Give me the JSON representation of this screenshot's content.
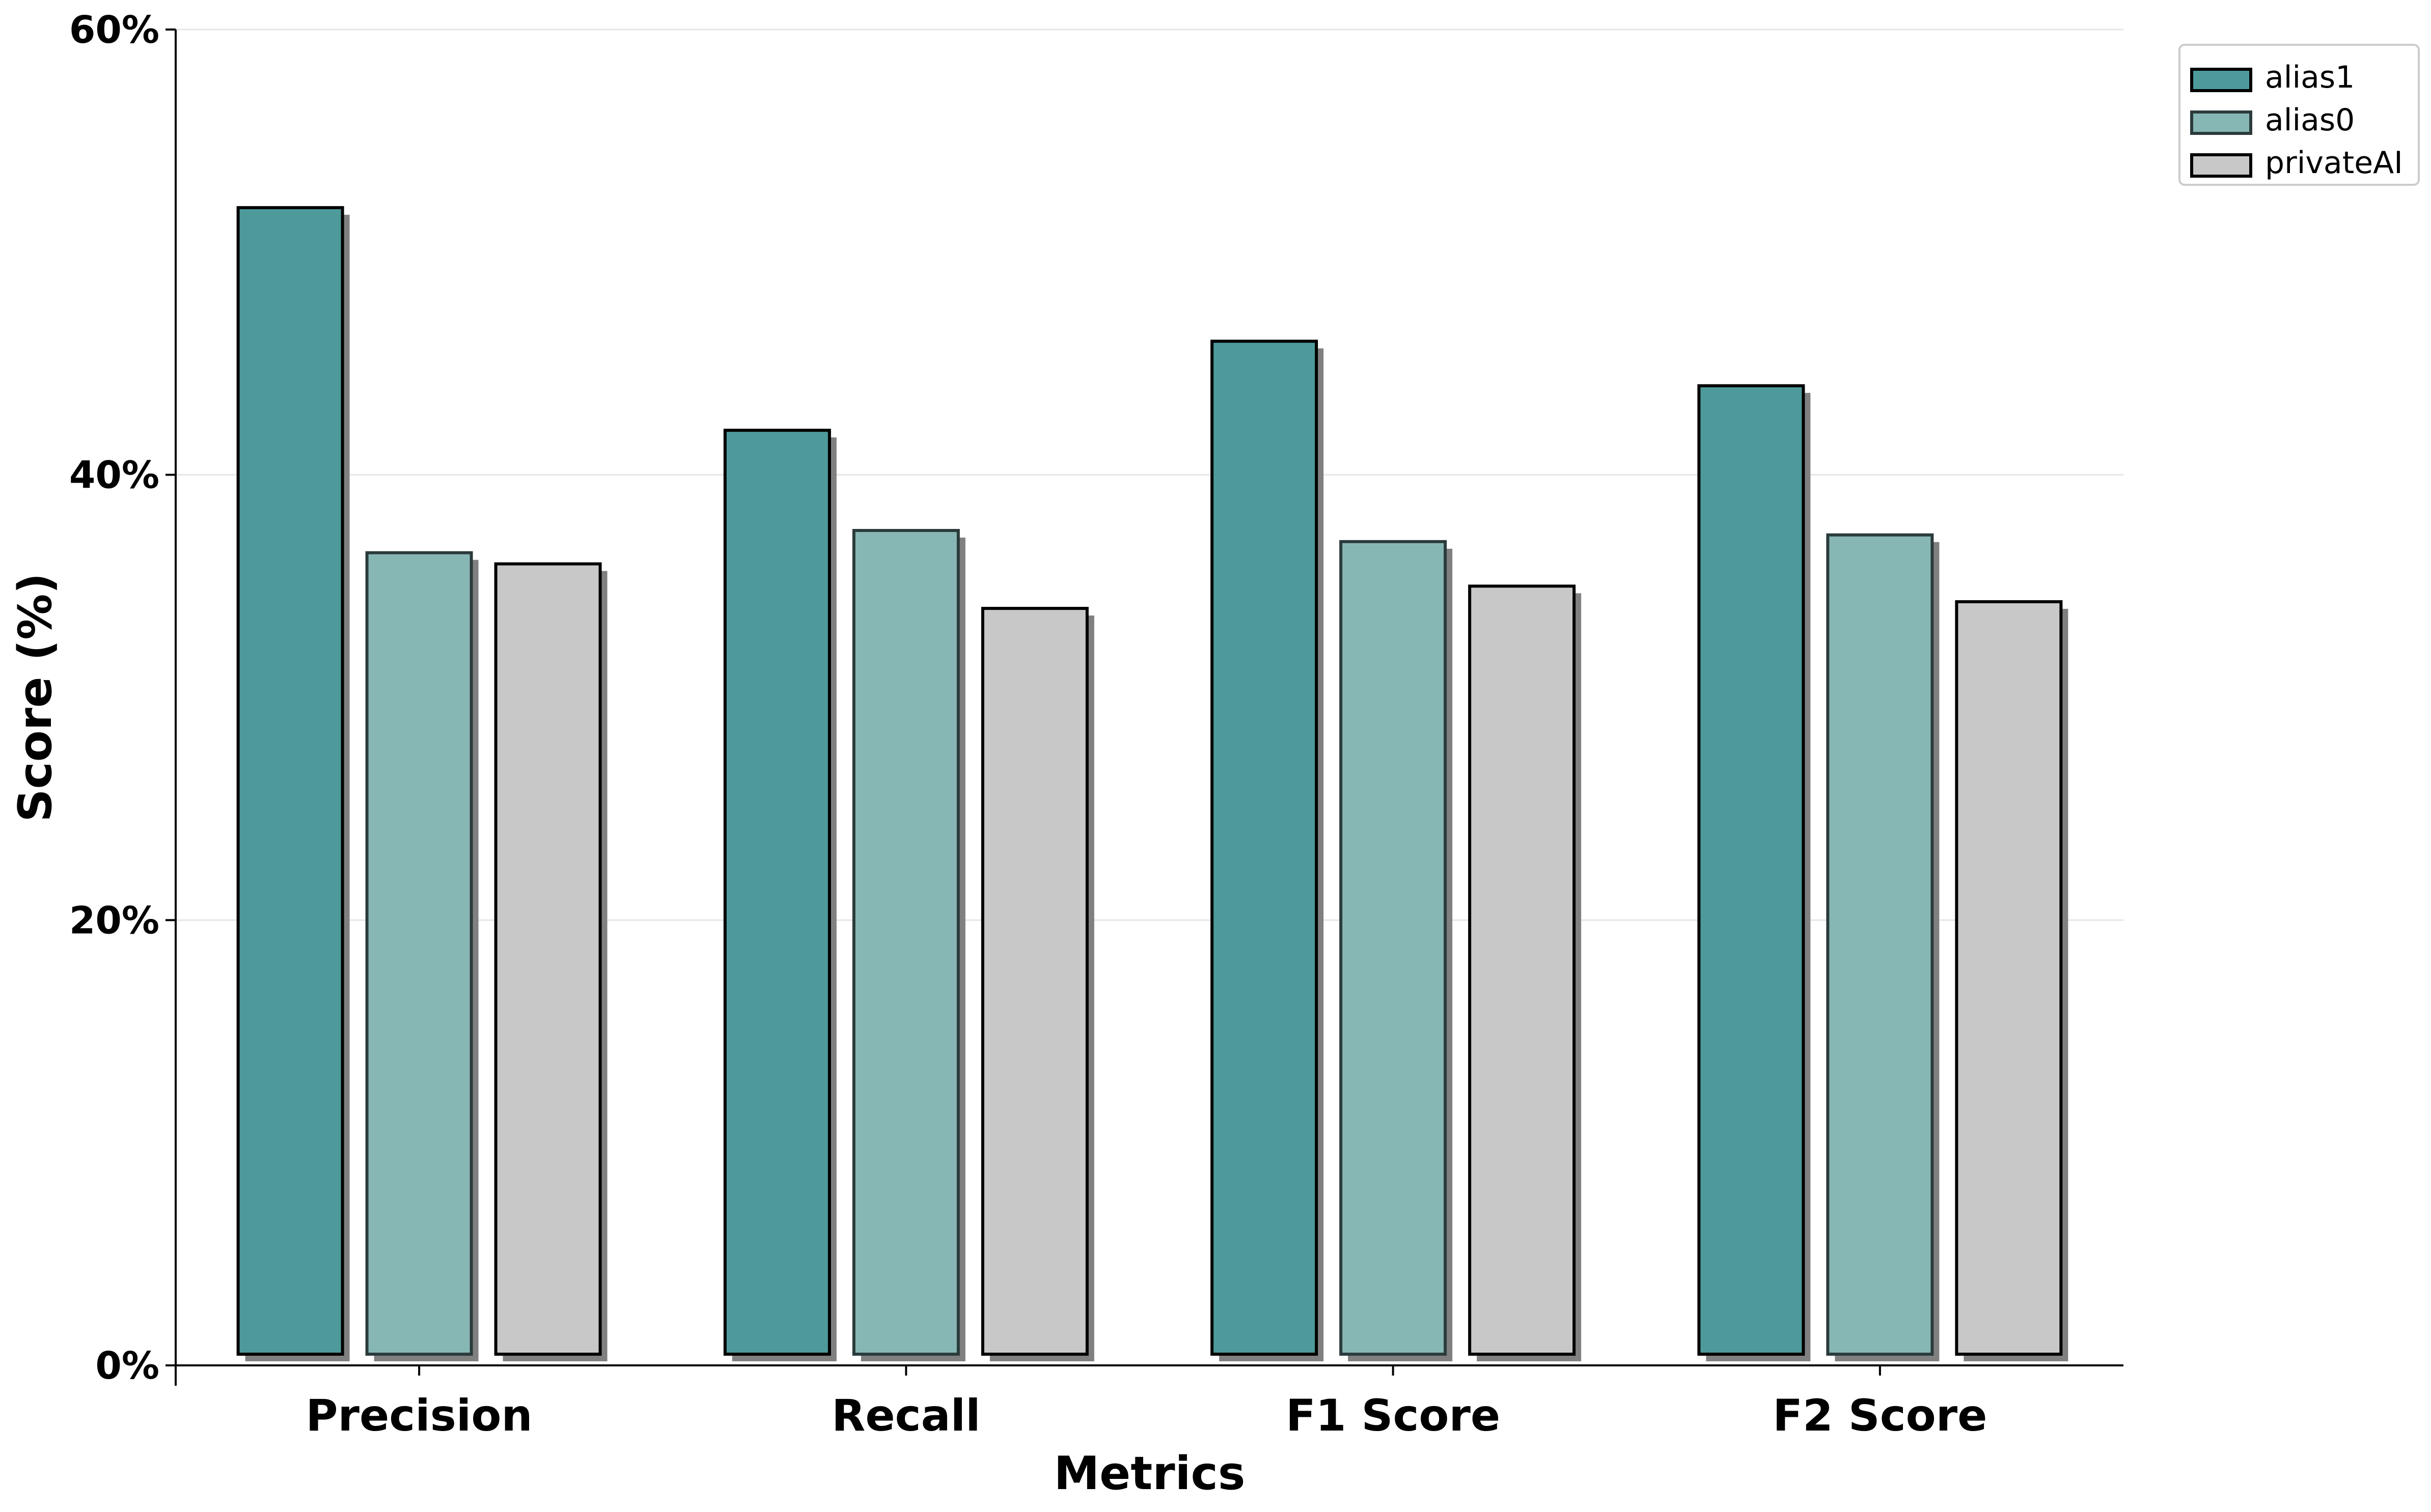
{
  "chart_data": {
    "type": "bar",
    "title": "",
    "xlabel": "Metrics",
    "ylabel": "Score (%)",
    "categories": [
      "Precision",
      "Recall",
      "F1 Score",
      "F2 Score"
    ],
    "series": [
      {
        "name": "alias1",
        "values": [
          52.0,
          42.0,
          46.0,
          44.0
        ],
        "color": "#4e9a9b",
        "opacity": 1.0,
        "edge_color": "#000000"
      },
      {
        "name": "alias0",
        "values": [
          36.5,
          37.5,
          37.0,
          37.3
        ],
        "color": "#87b7b5",
        "opacity": 1.0,
        "edge_color": "#2b3b3b"
      },
      {
        "name": "privateAI",
        "values": [
          36.0,
          34.0,
          35.0,
          34.3
        ],
        "color": "#c8c8c8",
        "opacity": 1.0,
        "edge_color": "#000000"
      }
    ],
    "ylim": [
      0,
      60
    ],
    "yticks": [
      0,
      20,
      40,
      60
    ],
    "ytick_labels": [
      "0%",
      "20%",
      "40%",
      "60%"
    ],
    "grid": "horizontal",
    "legend_position": "top-right (outside plot)",
    "bar_shadow_color": "#808080"
  }
}
